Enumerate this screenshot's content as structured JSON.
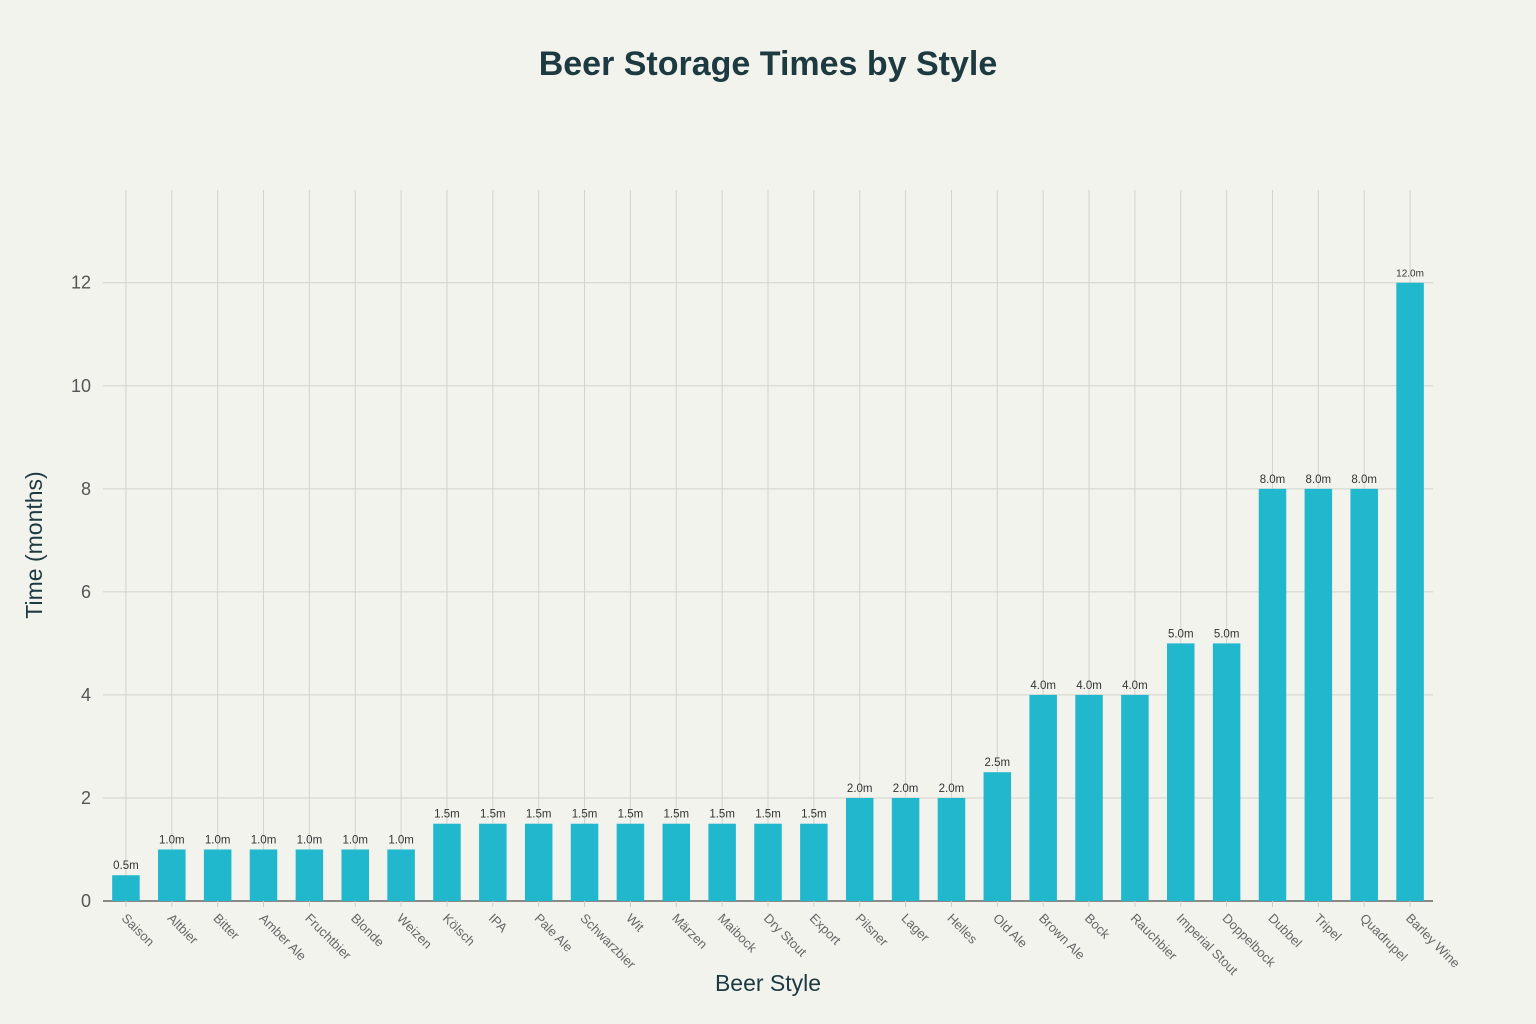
{
  "chart_data": {
    "type": "bar",
    "title": "Beer Storage Times by Style",
    "xlabel": "Beer Style",
    "ylabel": "Time (months)",
    "ylim": [
      0,
      13.8
    ],
    "yticks": [
      0,
      2,
      4,
      6,
      8,
      10,
      12
    ],
    "grid": true,
    "bar_color": "#21b8ce",
    "label_suffix": "m",
    "categories": [
      "Saison",
      "Altbier",
      "Bitter",
      "Amber Ale",
      "Fruchtbier",
      "Blonde",
      "Weizen",
      "Kölsch",
      "IPA",
      "Pale Ale",
      "Schwarzbier",
      "Wit",
      "Märzen",
      "Maibock",
      "Dry Stout",
      "Export",
      "Pilsner",
      "Lager",
      "Helles",
      "Old Ale",
      "Brown Ale",
      "Bock",
      "Rauchbier",
      "Imperial Stout",
      "Doppelbock",
      "Dubbel",
      "Tripel",
      "Quadrupel",
      "Barley Wine"
    ],
    "values": [
      0.5,
      1.0,
      1.0,
      1.0,
      1.0,
      1.0,
      1.0,
      1.5,
      1.5,
      1.5,
      1.5,
      1.5,
      1.5,
      1.5,
      1.5,
      1.5,
      2.0,
      2.0,
      2.0,
      2.5,
      4.0,
      4.0,
      4.0,
      5.0,
      5.0,
      8.0,
      8.0,
      8.0,
      12.0
    ]
  }
}
